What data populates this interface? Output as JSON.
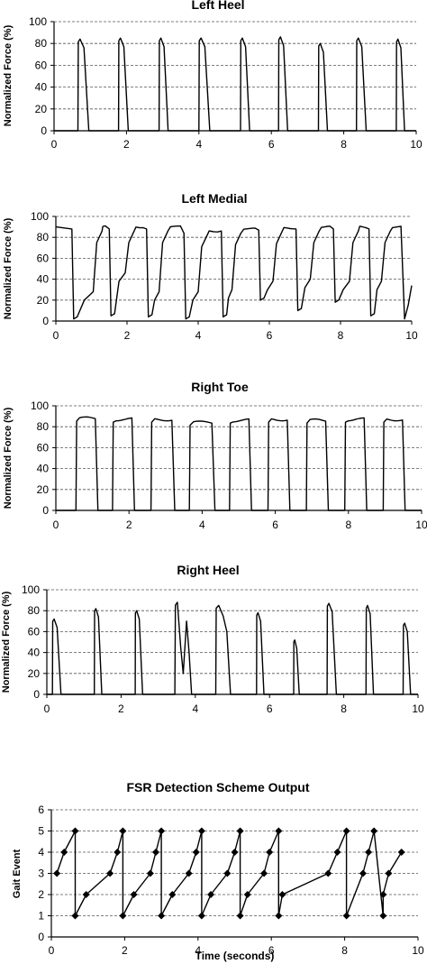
{
  "chart_data": [
    {
      "type": "line",
      "title": "Left Heel",
      "ylabel": "Normalized Force (%)",
      "xlabel": "",
      "xlim": [
        0,
        10
      ],
      "ylim": [
        0,
        100
      ],
      "xticks": [
        "0",
        "2",
        "4",
        "6",
        "8",
        "10"
      ],
      "yticks": [
        "0",
        "20",
        "40",
        "60",
        "80",
        "100"
      ],
      "grid": true,
      "series": [
        {
          "x": [
            0,
            0.66,
            0.68,
            0.72,
            0.78,
            0.82,
            0.9,
            0.96,
            10
          ],
          "y": [
            0,
            0,
            82,
            84,
            80,
            74,
            10,
            0,
            0
          ],
          "pulses": [
            {
              "start": 0.66,
              "end": 0.96,
              "peak": 84
            },
            {
              "start": 1.78,
              "end": 2.05,
              "peak": 85
            },
            {
              "start": 2.9,
              "end": 3.15,
              "peak": 85
            },
            {
              "start": 4.0,
              "end": 4.3,
              "peak": 85
            },
            {
              "start": 5.15,
              "end": 5.4,
              "peak": 85
            },
            {
              "start": 6.2,
              "end": 6.45,
              "peak": 86
            },
            {
              "start": 7.3,
              "end": 7.55,
              "peak": 80
            },
            {
              "start": 8.35,
              "end": 8.62,
              "peak": 85
            },
            {
              "start": 9.45,
              "end": 9.68,
              "peak": 84
            }
          ]
        }
      ]
    },
    {
      "type": "line",
      "title": "Left Medial",
      "ylabel": "Normalized Force (%)",
      "xlabel": "",
      "xlim": [
        0,
        10
      ],
      "ylim": [
        0,
        100
      ],
      "xticks": [
        "0",
        "2",
        "4",
        "6",
        "8",
        "10"
      ],
      "yticks": [
        "0",
        "20",
        "40",
        "60",
        "80",
        "100"
      ],
      "grid": true,
      "cycles": [
        {
          "drop": 0.5,
          "low": 2,
          "mid": 20,
          "rise": 1.1,
          "plateau": 90,
          "end": 1.45
        },
        {
          "drop": 1.55,
          "low": 5,
          "mid": 38,
          "rise": 2.0,
          "plateau": 90,
          "end": 2.5
        },
        {
          "drop": 2.6,
          "low": 4,
          "mid": 20,
          "rise": 2.95,
          "plateau": 90,
          "end": 3.55
        },
        {
          "drop": 3.65,
          "low": 2,
          "mid": 20,
          "rise": 4.05,
          "plateau": 86,
          "end": 4.6
        },
        {
          "drop": 4.7,
          "low": 4,
          "mid": 22,
          "rise": 5.0,
          "plateau": 88,
          "end": 5.65
        },
        {
          "drop": 5.75,
          "low": 20,
          "mid": 30,
          "rise": 6.15,
          "plateau": 89,
          "end": 6.7
        },
        {
          "drop": 6.8,
          "low": 10,
          "mid": 32,
          "rise": 7.2,
          "plateau": 90,
          "end": 7.75
        },
        {
          "drop": 7.85,
          "low": 18,
          "mid": 30,
          "rise": 8.3,
          "plateau": 90,
          "end": 8.75
        },
        {
          "drop": 8.85,
          "low": 5,
          "mid": 30,
          "rise": 9.2,
          "plateau": 90,
          "end": 9.75
        }
      ],
      "start_level": 90,
      "tail": {
        "drop": 9.8,
        "low": 2,
        "end_value": 34
      }
    },
    {
      "type": "line",
      "title": "Right Toe",
      "ylabel": "Normalized Force (%)",
      "xlabel": "",
      "xlim": [
        0,
        10
      ],
      "ylim": [
        0,
        100
      ],
      "xticks": [
        "0",
        "2",
        "4",
        "6",
        "8",
        "10"
      ],
      "yticks": [
        "0",
        "20",
        "40",
        "60",
        "80",
        "100"
      ],
      "grid": true,
      "pulses": [
        {
          "start": 0.55,
          "end": 1.15,
          "peak": 88
        },
        {
          "start": 1.55,
          "end": 2.15,
          "peak": 87
        },
        {
          "start": 2.6,
          "end": 3.25,
          "peak": 87
        },
        {
          "start": 3.65,
          "end": 4.35,
          "peak": 84
        },
        {
          "start": 4.75,
          "end": 5.35,
          "peak": 86
        },
        {
          "start": 5.8,
          "end": 6.4,
          "peak": 87
        },
        {
          "start": 6.85,
          "end": 7.45,
          "peak": 86
        },
        {
          "start": 7.9,
          "end": 8.5,
          "peak": 87
        },
        {
          "start": 8.95,
          "end": 9.55,
          "peak": 87
        }
      ]
    },
    {
      "type": "line",
      "title": "Right Heel",
      "ylabel": "Normalized Force (%)",
      "xlabel": "",
      "xlim": [
        0,
        10
      ],
      "ylim": [
        0,
        100
      ],
      "xticks": [
        "0",
        "2",
        "4",
        "6",
        "8",
        "10"
      ],
      "yticks": [
        "0",
        "20",
        "40",
        "60",
        "80",
        "100"
      ],
      "grid": true,
      "pulses": [
        {
          "start": 0.15,
          "end": 0.38,
          "peak": 72
        },
        {
          "start": 1.28,
          "end": 1.48,
          "peak": 82
        },
        {
          "start": 2.38,
          "end": 2.58,
          "peak": 80
        },
        {
          "start": 3.45,
          "end": 3.9,
          "peak": 88
        },
        {
          "start": 4.55,
          "end": 4.95,
          "peak": 85
        },
        {
          "start": 5.65,
          "end": 5.85,
          "peak": 78
        },
        {
          "start": 6.65,
          "end": 6.8,
          "peak": 52
        },
        {
          "start": 7.55,
          "end": 7.8,
          "peak": 87
        },
        {
          "start": 8.6,
          "end": 8.8,
          "peak": 85
        },
        {
          "start": 9.6,
          "end": 9.8,
          "peak": 68
        }
      ]
    },
    {
      "type": "line",
      "title": "FSR Detection Scheme Output",
      "ylabel": "Gait Event",
      "xlabel": "Time (seconds)",
      "xlim": [
        0,
        10
      ],
      "ylim": [
        0,
        6
      ],
      "xticks": [
        "0",
        "2",
        "4",
        "6",
        "8",
        "10"
      ],
      "yticks": [
        "0",
        "1",
        "2",
        "3",
        "4",
        "5",
        "6"
      ],
      "grid": true,
      "series": [
        {
          "x": [
            0.15,
            0.35,
            0.65,
            0.65,
            0.95,
            1.6,
            1.8,
            1.95,
            1.95,
            2.25,
            2.7,
            2.85,
            3.0,
            3.0,
            3.3,
            3.75,
            3.95,
            4.1,
            4.1,
            4.35,
            4.8,
            5.0,
            5.15,
            5.15,
            5.35,
            5.8,
            5.95,
            6.2,
            6.2,
            6.3,
            7.55,
            7.8,
            8.05,
            8.05,
            8.5,
            8.65,
            8.8,
            9.05,
            9.05,
            9.2,
            9.55
          ],
          "y": [
            3,
            4,
            5,
            1,
            2,
            3,
            4,
            5,
            1,
            2,
            3,
            4,
            5,
            1,
            2,
            3,
            4,
            5,
            1,
            2,
            3,
            4,
            5,
            1,
            2,
            3,
            4,
            5,
            1,
            2,
            3,
            4,
            5,
            1,
            3,
            4,
            5,
            1,
            2,
            3,
            4
          ],
          "marker": "diamond"
        }
      ]
    }
  ]
}
